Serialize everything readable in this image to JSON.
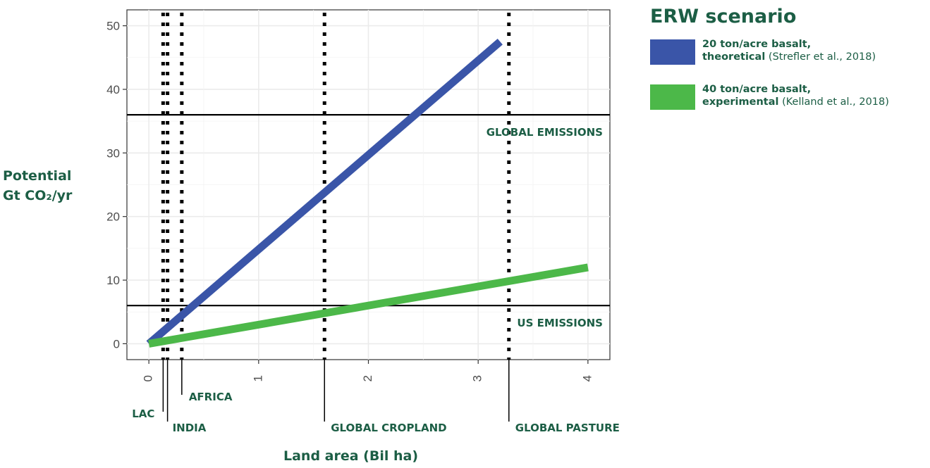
{
  "chart_data": {
    "type": "line",
    "xlabel": "Land area (Bil ha)",
    "ylabel_line1": "Potential",
    "ylabel_line2": "Gt CO₂/yr",
    "xlim": [
      -0.2,
      4.2
    ],
    "ylim": [
      -2.5,
      52.5
    ],
    "x_ticks": [
      0,
      1,
      2,
      3,
      4
    ],
    "y_ticks": [
      0,
      10,
      20,
      30,
      40,
      50
    ],
    "grid": true,
    "legend_title": "ERW scenario",
    "legend_position": "right",
    "series": [
      {
        "color": "#3a55a8",
        "legend_bold_line1": "20 ton/acre basalt,",
        "legend_bold_line2": "theoretical",
        "legend_cite": " (Strefler et al., 2018)",
        "x": [
          0,
          3.2
        ],
        "y": [
          0,
          47.5
        ]
      },
      {
        "color": "#4cb849",
        "legend_bold_line1": "40 ton/acre basalt,",
        "legend_bold_line2": "experimental",
        "legend_cite": " (Kelland et al., 2018)",
        "x": [
          0,
          4.0
        ],
        "y": [
          0,
          12.0
        ]
      }
    ],
    "hlines": [
      {
        "y": 36,
        "label": "GLOBAL EMISSIONS"
      },
      {
        "y": 6,
        "label": "US EMISSIONS"
      }
    ],
    "vlines": [
      {
        "x": 0.13,
        "label": "LAC"
      },
      {
        "x": 0.17,
        "label": "INDIA"
      },
      {
        "x": 0.3,
        "label": "AFRICA"
      },
      {
        "x": 1.6,
        "label": "GLOBAL CROPLAND"
      },
      {
        "x": 3.28,
        "label": "GLOBAL PASTURE"
      }
    ]
  }
}
